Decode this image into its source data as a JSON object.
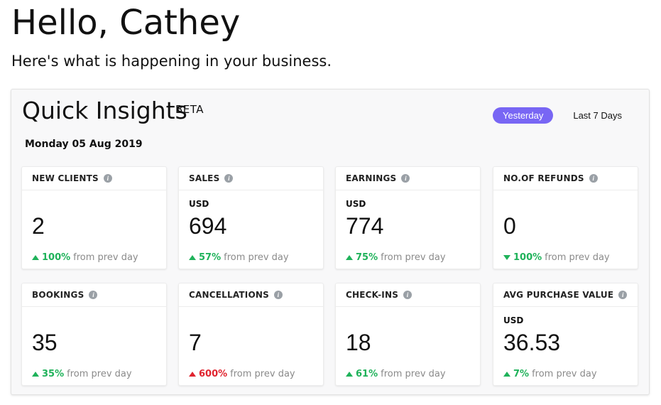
{
  "greeting": "Hello, Cathey",
  "subtitle": "Here's what is happening in your business.",
  "insights": {
    "title": "Quick Insights",
    "badge": "BETA",
    "range_options": [
      "Yesterday",
      "Last 7 Days"
    ],
    "selected_range": "Yesterday",
    "date": "Monday 05 Aug 2019",
    "colors": {
      "accent": "#7866f4",
      "positive": "#1fb25a",
      "negative": "#e0242f"
    },
    "cards": [
      {
        "title": "NEW CLIENTS",
        "currency": "",
        "value": "2",
        "delta": "100%",
        "delta_text": "from prev day",
        "direction": "up",
        "color": "green"
      },
      {
        "title": "SALES",
        "currency": "USD",
        "value": "694",
        "delta": "57%",
        "delta_text": "from prev day",
        "direction": "up",
        "color": "green"
      },
      {
        "title": "EARNINGS",
        "currency": "USD",
        "value": "774",
        "delta": "75%",
        "delta_text": "from prev day",
        "direction": "up",
        "color": "green"
      },
      {
        "title": "NO.OF REFUNDS",
        "currency": "",
        "value": "0",
        "delta": "100%",
        "delta_text": "from prev day",
        "direction": "down",
        "color": "green"
      },
      {
        "title": "BOOKINGS",
        "currency": "",
        "value": "35",
        "delta": "35%",
        "delta_text": "from prev day",
        "direction": "up",
        "color": "green"
      },
      {
        "title": "CANCELLATIONS",
        "currency": "",
        "value": "7",
        "delta": "600%",
        "delta_text": "from prev day",
        "direction": "up",
        "color": "red"
      },
      {
        "title": "CHECK-INS",
        "currency": "",
        "value": "18",
        "delta": "61%",
        "delta_text": "from prev day",
        "direction": "up",
        "color": "green"
      },
      {
        "title": "AVG PURCHASE VALUE",
        "currency": "USD",
        "value": "36.53",
        "delta": "7%",
        "delta_text": "from prev day",
        "direction": "up",
        "color": "green"
      }
    ]
  }
}
